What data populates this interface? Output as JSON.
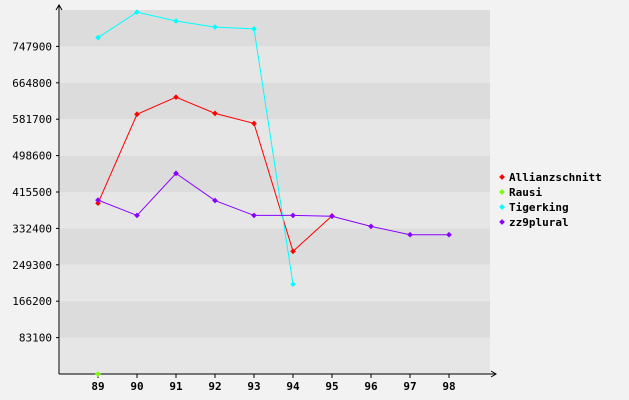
{
  "chart_data": {
    "type": "line",
    "title": "",
    "xlabel": "",
    "ylabel": "",
    "x": [
      "89",
      "90",
      "91",
      "92",
      "93",
      "94",
      "95",
      "96",
      "97",
      "98"
    ],
    "yticks": [
      "83100",
      "166200",
      "249300",
      "332400",
      "415500",
      "498600",
      "581700",
      "664800",
      "747900"
    ],
    "ylim": [
      0,
      831000
    ],
    "grid": "horizontal bands",
    "legend_position": "right",
    "series": [
      {
        "name": "Allianzschnitt",
        "color": "#ff0000",
        "values": [
          390000,
          593000,
          632000,
          595000,
          572000,
          280000,
          361000,
          null,
          null,
          null
        ]
      },
      {
        "name": "Rausi",
        "color": "#7cfc00",
        "values": [
          0,
          null,
          null,
          null,
          null,
          null,
          null,
          null,
          null,
          null
        ]
      },
      {
        "name": "Tigerking",
        "color": "#00ffff",
        "values": [
          768000,
          826000,
          806000,
          792000,
          788000,
          205000,
          null,
          null,
          null,
          null
        ]
      },
      {
        "name": "zz9plural",
        "color": "#8800ff",
        "values": [
          397000,
          362000,
          458000,
          396000,
          362000,
          362000,
          360000,
          337000,
          318000,
          318000
        ]
      }
    ]
  }
}
